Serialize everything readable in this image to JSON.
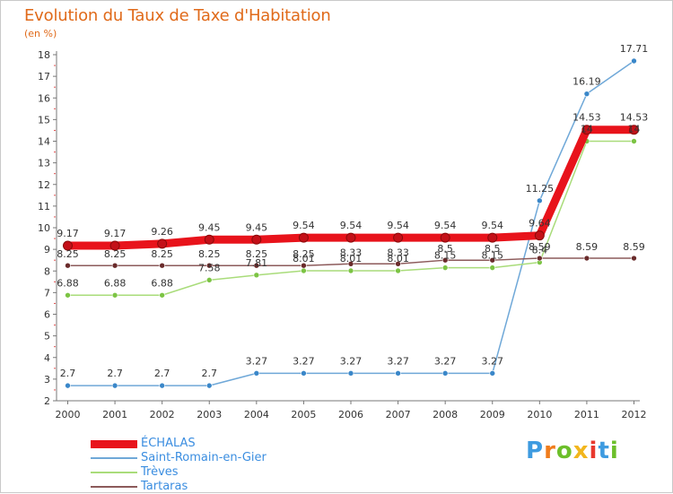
{
  "header": {
    "title": "Evolution du Taux de Taxe d'Habitation",
    "unit": "(en %)"
  },
  "logo": {
    "text": "Proxiti",
    "letters": [
      {
        "ch": "P",
        "color": "#3e9be0"
      },
      {
        "ch": "r",
        "color": "#f07c1c"
      },
      {
        "ch": "o",
        "color": "#6cbf2a"
      },
      {
        "ch": "x",
        "color": "#f2b61d"
      },
      {
        "ch": "i",
        "color": "#e8382d"
      },
      {
        "ch": "t",
        "color": "#3e9be0"
      },
      {
        "ch": "i",
        "color": "#6cbf2a"
      }
    ]
  },
  "chart_data": {
    "type": "line",
    "title": "Evolution du Taux de Taxe d'Habitation",
    "ylabel": "(en %)",
    "xlabel": "",
    "x": [
      "2000",
      "2001",
      "2002",
      "2003",
      "2004",
      "2005",
      "2006",
      "2007",
      "2008",
      "2009",
      "2010",
      "2011",
      "2012"
    ],
    "ylim": [
      2,
      18
    ],
    "yticks": [
      2,
      3,
      4,
      5,
      6,
      7,
      8,
      9,
      10,
      11,
      12,
      13,
      14,
      15,
      16,
      17,
      18
    ],
    "grid": false,
    "legend_position": "bottom-left",
    "series": [
      {
        "name": "ÉCHALAS",
        "color": "#e8131b",
        "marker_color": "#c41018",
        "values": [
          9.17,
          9.17,
          9.26,
          9.45,
          9.45,
          9.54,
          9.54,
          9.54,
          9.54,
          9.54,
          9.64,
          14.53,
          14.53
        ],
        "labels": [
          "9.17",
          "9.17",
          "9.26",
          "9.45",
          "9.45",
          "9.54",
          "9.54",
          "9.54",
          "9.54",
          "9.54",
          "9.64",
          "14.53",
          "14.53"
        ]
      },
      {
        "name": "Saint-Romain-en-Gier",
        "color": "#6fa8d8",
        "marker_color": "#3a87c9",
        "values": [
          2.7,
          2.7,
          2.7,
          2.7,
          3.27,
          3.27,
          3.27,
          3.27,
          3.27,
          3.27,
          11.25,
          16.19,
          17.71
        ],
        "labels": [
          "2.7",
          "2.7",
          "2.7",
          "2.7",
          "3.27",
          "3.27",
          "3.27",
          "3.27",
          "3.27",
          "3.27",
          "11.25",
          "16.19",
          "17.71"
        ]
      },
      {
        "name": "Trèves",
        "color": "#a9dc7a",
        "marker_color": "#7cc444",
        "values": [
          6.88,
          6.88,
          6.88,
          7.58,
          7.81,
          8.01,
          8.01,
          8.01,
          8.15,
          8.15,
          8.4,
          14,
          14
        ],
        "labels": [
          "6.88",
          "6.88",
          "6.88",
          "7.58",
          "7.81",
          "8.01",
          "8.01",
          "8.01",
          "8.15",
          "8.15",
          "8.4",
          "14",
          "14"
        ]
      },
      {
        "name": "Tartaras",
        "color": "#8c5a5a",
        "marker_color": "#6a2b2b",
        "values": [
          8.25,
          8.25,
          8.25,
          8.25,
          8.25,
          8.25,
          8.33,
          8.33,
          8.5,
          8.5,
          8.59,
          8.59,
          8.59
        ],
        "labels": [
          "8.25",
          "8.25",
          "8.25",
          "8.25",
          "8.25",
          "8.25",
          "8.33",
          "8.33",
          "8.5",
          "8.5",
          "8.59",
          "8.59",
          "8.59"
        ]
      }
    ]
  }
}
